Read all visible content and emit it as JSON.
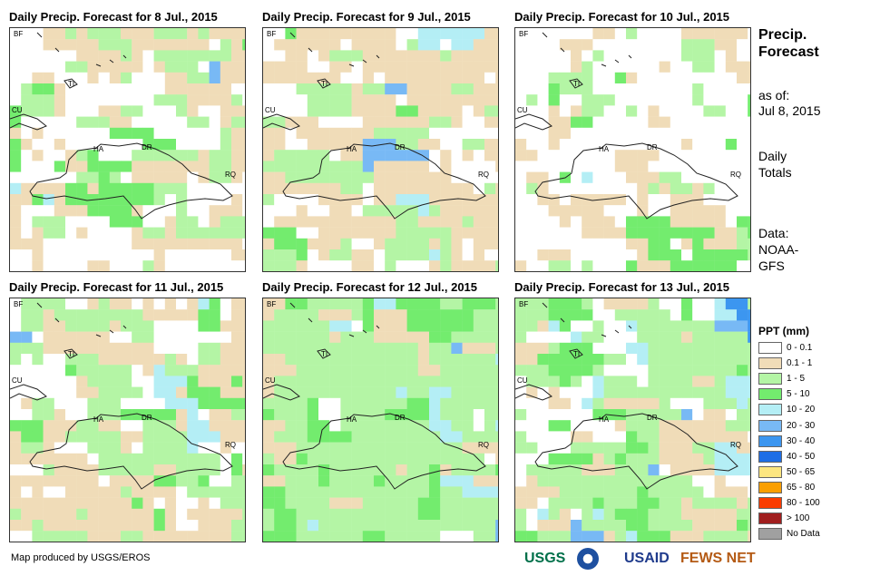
{
  "panels": [
    {
      "title": "Daily Precip. Forecast for 8 Jul., 2015"
    },
    {
      "title": "Daily Precip. Forecast for 9 Jul., 2015"
    },
    {
      "title": "Daily Precip. Forecast for 10 Jul., 2015"
    },
    {
      "title": "Daily Precip. Forecast for 11 Jul., 2015"
    },
    {
      "title": "Daily Precip. Forecast for 12 Jul., 2015"
    },
    {
      "title": "Daily Precip. Forecast for 13 Jul., 2015"
    }
  ],
  "map_labels": {
    "bf": "BF",
    "cu": "CU",
    "ti": "TI",
    "ha": "HA",
    "dr": "DR",
    "rq": "RQ"
  },
  "side": {
    "title1": "Precip.",
    "title2": "Forecast",
    "asof_label": "as of:",
    "asof_date": "Jul 8, 2015",
    "daily1": "Daily",
    "daily2": "Totals",
    "data1": "Data:",
    "data2": "NOAA-",
    "data3": "GFS"
  },
  "legend": {
    "title": "PPT (mm)",
    "items": [
      {
        "label": "0 - 0.1",
        "color": "#ffffff"
      },
      {
        "label": "0.1 - 1",
        "color": "#f0dcb8"
      },
      {
        "label": "1 - 5",
        "color": "#b4f5a5"
      },
      {
        "label": "5 - 10",
        "color": "#73ec6e"
      },
      {
        "label": "10 - 20",
        "color": "#b4eef5"
      },
      {
        "label": "20 - 30",
        "color": "#78b9f5"
      },
      {
        "label": "30 - 40",
        "color": "#3c96f0"
      },
      {
        "label": "40 - 50",
        "color": "#1e6ee6"
      },
      {
        "label": "50 - 65",
        "color": "#fde680"
      },
      {
        "label": "65 - 80",
        "color": "#fa9f00"
      },
      {
        "label": "80 - 100",
        "color": "#fa3c00"
      },
      {
        "label": "> 100",
        "color": "#a01e1e"
      },
      {
        "label": "No Data",
        "color": "#a0a0a0"
      }
    ]
  },
  "credit": "Map produced by USGS/EROS",
  "logos": {
    "usgs": "USGS",
    "usaid": "USAID",
    "fews": "FEWS NET"
  }
}
